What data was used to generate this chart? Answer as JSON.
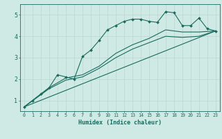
{
  "xlabel": "Humidex (Indice chaleur)",
  "bg_color": "#cfe9e5",
  "line_color": "#1a6b5e",
  "grid_color": "#b8d8d2",
  "xlim": [
    -0.5,
    23.5
  ],
  "ylim": [
    0.5,
    5.5
  ],
  "yticks": [
    1,
    2,
    3,
    4,
    5
  ],
  "xticks": [
    0,
    1,
    2,
    3,
    4,
    5,
    6,
    7,
    8,
    9,
    10,
    11,
    12,
    13,
    14,
    15,
    16,
    17,
    18,
    19,
    20,
    21,
    22,
    23
  ],
  "line1_x": [
    0,
    1,
    2,
    3,
    4,
    5,
    6,
    7,
    8,
    9,
    10,
    11,
    12,
    13,
    14,
    15,
    16,
    17,
    18,
    19,
    20,
    21,
    22,
    23
  ],
  "line1_y": [
    0.7,
    1.0,
    1.3,
    1.6,
    2.2,
    2.1,
    2.0,
    3.05,
    3.35,
    3.8,
    4.3,
    4.5,
    4.7,
    4.8,
    4.8,
    4.7,
    4.65,
    5.15,
    5.1,
    4.5,
    4.5,
    4.85,
    4.35,
    4.25
  ],
  "line2_x": [
    0,
    3,
    5,
    7,
    9,
    11,
    13,
    15,
    17,
    19,
    21,
    23
  ],
  "line2_y": [
    0.7,
    1.6,
    2.05,
    2.2,
    2.6,
    3.2,
    3.6,
    3.9,
    4.3,
    4.2,
    4.2,
    4.25
  ],
  "line3_x": [
    0,
    3,
    5,
    7,
    9,
    11,
    13,
    15,
    17,
    19,
    21,
    23
  ],
  "line3_y": [
    0.7,
    1.55,
    1.95,
    2.1,
    2.5,
    3.0,
    3.4,
    3.7,
    4.0,
    3.95,
    4.0,
    4.25
  ],
  "line4_x": [
    0,
    23
  ],
  "line4_y": [
    0.7,
    4.25
  ]
}
